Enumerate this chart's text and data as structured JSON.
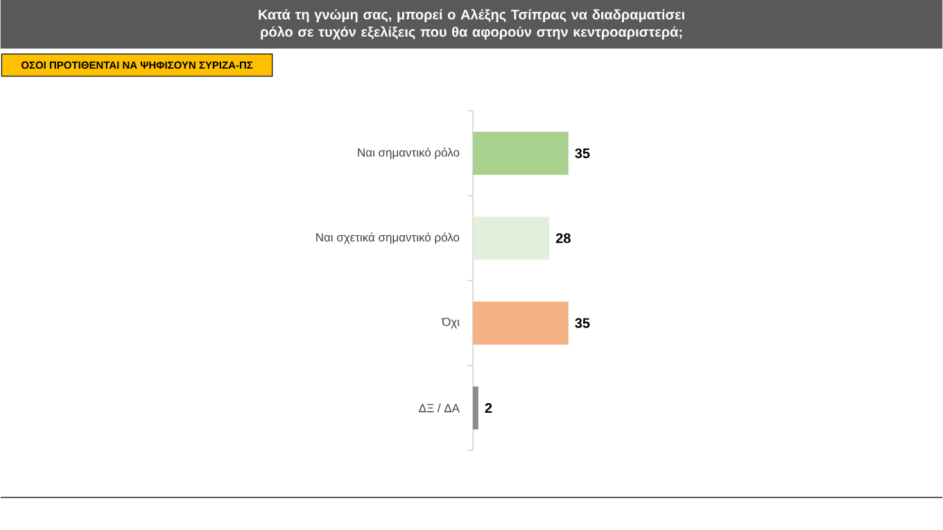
{
  "chart_data": {
    "type": "bar",
    "orientation": "horizontal",
    "title": "Κατά τη γνώμη σας, μπορεί ο Αλέξης Τσίπρας να διαδραματίσει ρόλο σε τυχόν εξελίξεις που θα αφορούν στην κεντροαριστερά;",
    "subtitle": "ΟΣΟΙ ΠΡΟΤΙΘΕΝΤΑΙ ΝΑ ΨΗΦΙΣΟΥΝ ΣΥΡΙΖΑ-ΠΣ",
    "categories": [
      "Ναι σημαντικό ρόλο",
      "Ναι σχετικά σημαντικό ρόλο",
      "Όχι",
      "ΔΞ / ΔΑ"
    ],
    "values": [
      35,
      28,
      35,
      2
    ],
    "colors": [
      "#a9d18e",
      "#e2efda",
      "#f4b183",
      "#8c8c8c"
    ],
    "data_labels": true
  }
}
